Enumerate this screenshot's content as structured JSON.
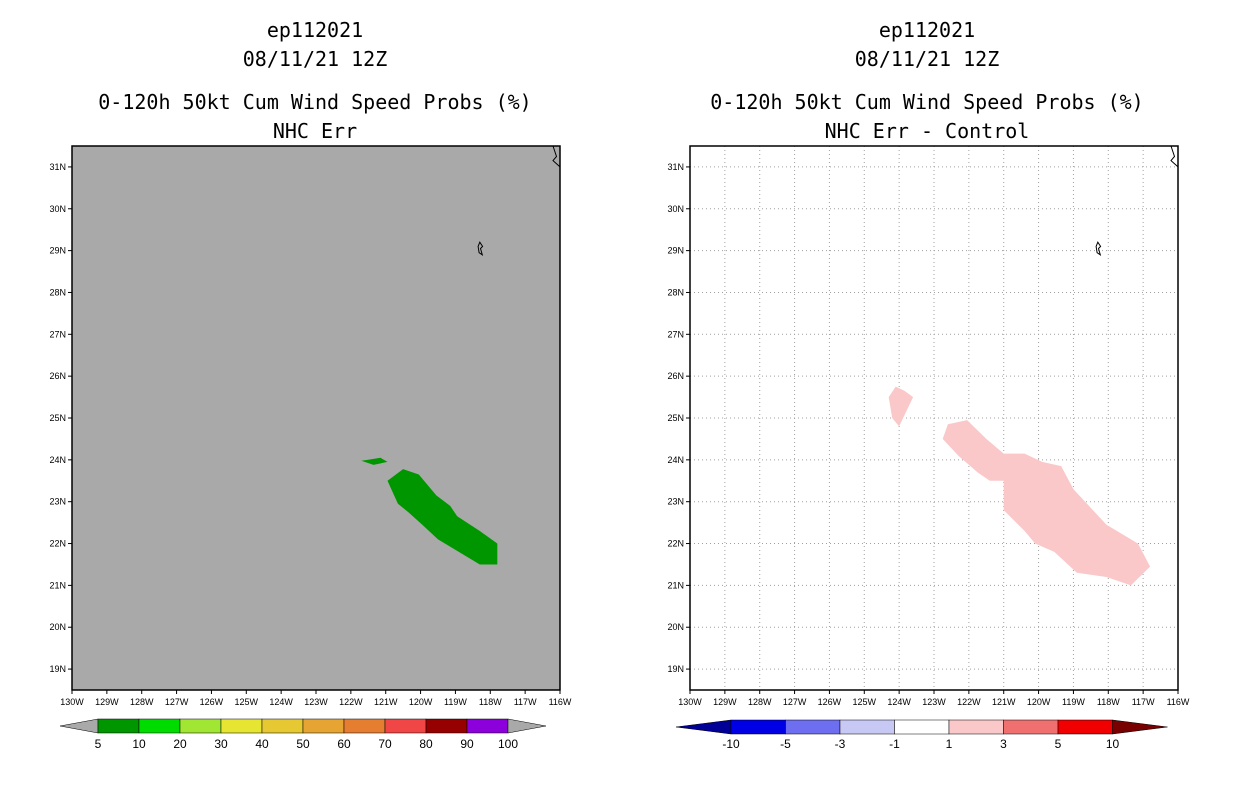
{
  "panels": [
    {
      "storm_id": "ep112021",
      "datetime": "08/11/21 12Z",
      "product": "0-120h 50kt Cum Wind Speed Probs (%)",
      "subtitle": "NHC Err",
      "background_color": "#a9a9a9",
      "grid": false
    },
    {
      "storm_id": "ep112021",
      "datetime": "08/11/21 12Z",
      "product": "0-120h 50kt Cum Wind Speed Probs (%)",
      "subtitle": "NHC Err - Control",
      "background_color": "#ffffff",
      "grid": true
    }
  ],
  "chart_data": [
    {
      "type": "heatmap",
      "title": "0-120h 50kt Cum Wind Speed Probs (%)",
      "subtitle": "NHC Err",
      "xlabel": "",
      "ylabel": "",
      "xlim": [
        -130,
        -116
      ],
      "ylim": [
        18.5,
        31.5
      ],
      "x_ticks": [
        "130W",
        "129W",
        "128W",
        "127W",
        "126W",
        "125W",
        "124W",
        "123W",
        "122W",
        "121W",
        "120W",
        "119W",
        "118W",
        "117W",
        "116W"
      ],
      "y_ticks": [
        "19N",
        "20N",
        "21N",
        "22N",
        "23N",
        "24N",
        "25N",
        "26N",
        "27N",
        "28N",
        "29N",
        "30N",
        "31N"
      ],
      "colorbar": {
        "labels": [
          "5",
          "10",
          "20",
          "30",
          "40",
          "50",
          "60",
          "70",
          "80",
          "90",
          "100"
        ],
        "colors": [
          "#009600",
          "#00dc00",
          "#a0e632",
          "#e6e632",
          "#e6c832",
          "#e6a532",
          "#e67e32",
          "#f04646",
          "#960000",
          "#8c00dc"
        ],
        "extend_color": "#a9a9a9"
      },
      "contours": [
        {
          "level": "5-10",
          "color": "#009600",
          "polygon": [
            [
              -121.5,
              24.0
            ],
            [
              -121.15,
              24.05
            ],
            [
              -120.95,
              23.95
            ],
            [
              -121.35,
              23.88
            ],
            [
              -121.7,
              23.98
            ]
          ]
        },
        {
          "level": "5-10",
          "color": "#009600",
          "polygon": [
            [
              -120.95,
              23.5
            ],
            [
              -120.5,
              23.78
            ],
            [
              -120.05,
              23.65
            ],
            [
              -119.55,
              23.15
            ],
            [
              -119.15,
              22.9
            ],
            [
              -118.95,
              22.65
            ],
            [
              -118.3,
              22.3
            ],
            [
              -117.8,
              22.0
            ],
            [
              -117.8,
              21.5
            ],
            [
              -118.3,
              21.5
            ],
            [
              -118.7,
              21.7
            ],
            [
              -119.5,
              22.1
            ],
            [
              -119.95,
              22.45
            ],
            [
              -120.35,
              22.75
            ],
            [
              -120.65,
              22.95
            ]
          ]
        }
      ]
    },
    {
      "type": "heatmap",
      "title": "0-120h 50kt Cum Wind Speed Probs (%)",
      "subtitle": "NHC Err - Control",
      "xlabel": "",
      "ylabel": "",
      "xlim": [
        -130,
        -116
      ],
      "ylim": [
        18.5,
        31.5
      ],
      "x_ticks": [
        "130W",
        "129W",
        "128W",
        "127W",
        "126W",
        "125W",
        "124W",
        "123W",
        "122W",
        "121W",
        "120W",
        "119W",
        "118W",
        "117W",
        "116W"
      ],
      "y_ticks": [
        "19N",
        "20N",
        "21N",
        "22N",
        "23N",
        "24N",
        "25N",
        "26N",
        "27N",
        "28N",
        "29N",
        "30N",
        "31N"
      ],
      "colorbar": {
        "labels": [
          "-10",
          "-5",
          "-3",
          "-1",
          "1",
          "3",
          "5",
          "10"
        ],
        "colors": [
          "#0000e6",
          "#6e6ef0",
          "#c8c8f5",
          "#ffffff",
          "#fac8c8",
          "#f07070",
          "#f00000"
        ],
        "extend_low_color": "#000096",
        "extend_high_color": "#780000"
      },
      "contours": [
        {
          "level": "1-3",
          "color": "#fac8c8",
          "polygon": [
            [
              -124.1,
              25.75
            ],
            [
              -123.85,
              25.65
            ],
            [
              -123.6,
              25.5
            ],
            [
              -124.0,
              24.8
            ],
            [
              -124.2,
              25.0
            ],
            [
              -124.3,
              25.5
            ]
          ]
        },
        {
          "level": "1-3",
          "color": "#fac8c8",
          "polygon": [
            [
              -122.6,
              24.85
            ],
            [
              -122.05,
              24.95
            ],
            [
              -121.5,
              24.5
            ],
            [
              -121.0,
              24.15
            ],
            [
              -120.4,
              24.15
            ],
            [
              -119.9,
              23.95
            ],
            [
              -119.35,
              23.85
            ],
            [
              -119.0,
              23.3
            ],
            [
              -118.5,
              22.85
            ],
            [
              -118.05,
              22.45
            ],
            [
              -117.15,
              22.0
            ],
            [
              -116.8,
              21.45
            ],
            [
              -117.35,
              21.0
            ],
            [
              -118.05,
              21.2
            ],
            [
              -118.9,
              21.3
            ],
            [
              -119.55,
              21.8
            ],
            [
              -120.1,
              22.0
            ],
            [
              -120.4,
              22.3
            ],
            [
              -121.0,
              22.8
            ],
            [
              -121.0,
              23.5
            ],
            [
              -121.4,
              23.5
            ],
            [
              -121.75,
              23.7
            ],
            [
              -122.3,
              24.1
            ],
            [
              -122.75,
              24.5
            ]
          ]
        }
      ]
    }
  ]
}
